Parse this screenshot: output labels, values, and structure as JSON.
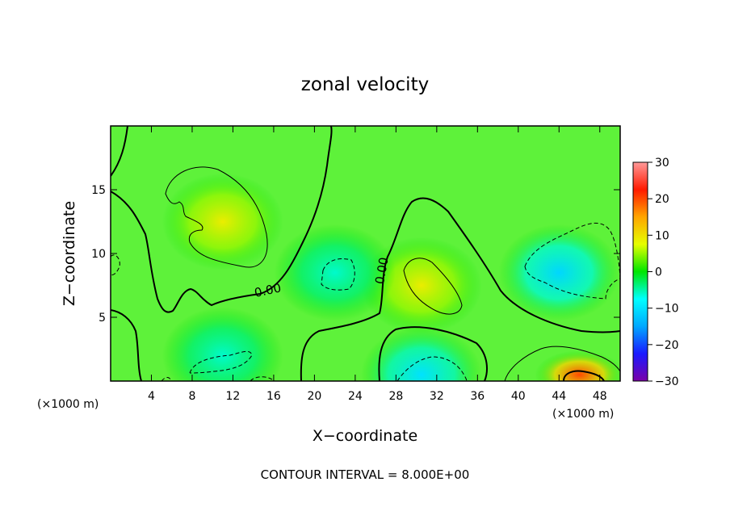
{
  "chart_data": {
    "type": "heatmap",
    "title": "zonal velocity",
    "xlabel": "X−coordinate",
    "ylabel": "Z−coordinate",
    "x_unit_left": "(×1000 m)",
    "x_unit_right": "(×1000 m)",
    "footer": "CONTOUR INTERVAL = 8.000E+00",
    "xlim": [
      0,
      50
    ],
    "ylim": [
      0,
      20
    ],
    "x_ticks": [
      4,
      8,
      12,
      16,
      20,
      24,
      28,
      32,
      36,
      40,
      44,
      48
    ],
    "y_ticks": [
      5,
      10,
      15
    ],
    "colorbar": {
      "range": [
        -30,
        30
      ],
      "ticks": [
        30,
        20,
        10,
        0,
        -10,
        -20,
        -30
      ],
      "tick_labels": [
        "30",
        "20",
        "10",
        "0",
        "−10",
        "−20",
        "−30"
      ],
      "colormap": [
        "#7b00a8",
        "#1a1aff",
        "#00a8ff",
        "#00ffff",
        "#00e600",
        "#e6ff00",
        "#ffa500",
        "#ff1a00",
        "#ff9999"
      ]
    },
    "contour_labels": [
      {
        "text": "0.00",
        "x": 15.5,
        "y": 6.8
      },
      {
        "text": "0.00",
        "x": 27.0,
        "y": 8.6
      }
    ],
    "features": [
      {
        "kind": "max",
        "x": 11.0,
        "y": 12.5,
        "value": 9
      },
      {
        "kind": "max",
        "x": 30.5,
        "y": 7.5,
        "value": 9
      },
      {
        "kind": "max",
        "x": 46.0,
        "y": 0.5,
        "value": 20
      },
      {
        "kind": "min",
        "x": 44.0,
        "y": 8.5,
        "value": -11
      },
      {
        "kind": "min",
        "x": 30.5,
        "y": 0.5,
        "value": -10
      },
      {
        "kind": "min",
        "x": 22.0,
        "y": 8.5,
        "value": -6
      },
      {
        "kind": "min",
        "x": 11.0,
        "y": 2.0,
        "value": -6
      }
    ]
  }
}
